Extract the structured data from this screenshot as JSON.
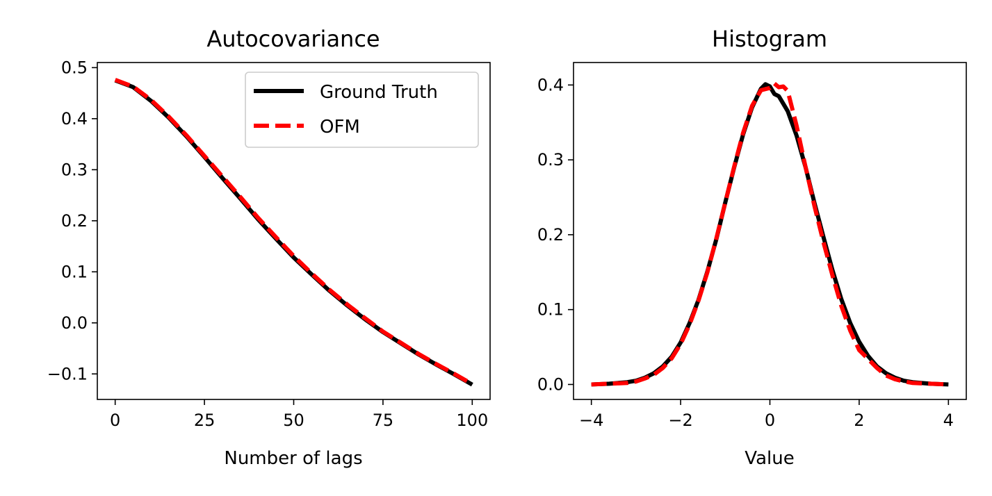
{
  "chart_data": [
    {
      "type": "line",
      "title": "Autocovariance",
      "xlabel": "Number of lags",
      "ylabel": "",
      "xlim": [
        -5,
        105
      ],
      "ylim": [
        -0.15,
        0.51
      ],
      "xticks": [
        0,
        25,
        50,
        75,
        100
      ],
      "xtick_labels": [
        "0",
        "25",
        "50",
        "75",
        "100"
      ],
      "yticks": [
        -0.1,
        0.0,
        0.1,
        0.2,
        0.3,
        0.4,
        0.5
      ],
      "ytick_labels": [
        "−0.1",
        "0.0",
        "0.1",
        "0.2",
        "0.3",
        "0.4",
        "0.5"
      ],
      "legend": {
        "position": "upper right",
        "entries": [
          "Ground Truth",
          "OFM"
        ]
      },
      "series": [
        {
          "name": "Ground Truth",
          "color": "#000000",
          "style": "solid",
          "x": [
            0,
            5,
            10,
            15,
            20,
            25,
            30,
            35,
            40,
            45,
            50,
            55,
            60,
            65,
            70,
            75,
            80,
            85,
            90,
            95,
            100
          ],
          "y": [
            0.475,
            0.462,
            0.435,
            0.402,
            0.365,
            0.325,
            0.284,
            0.244,
            0.203,
            0.165,
            0.128,
            0.095,
            0.063,
            0.034,
            0.007,
            -0.018,
            -0.04,
            -0.062,
            -0.082,
            -0.101,
            -0.121
          ]
        },
        {
          "name": "OFM",
          "color": "#ff0000",
          "style": "dashed",
          "x": [
            0,
            5,
            10,
            15,
            20,
            25,
            30,
            35,
            40,
            45,
            50,
            55,
            60,
            65,
            70,
            75,
            80,
            85,
            90,
            95,
            100
          ],
          "y": [
            0.476,
            0.463,
            0.437,
            0.404,
            0.367,
            0.327,
            0.287,
            0.247,
            0.206,
            0.168,
            0.131,
            0.097,
            0.065,
            0.036,
            0.009,
            -0.017,
            -0.039,
            -0.061,
            -0.081,
            -0.1,
            -0.12
          ]
        }
      ]
    },
    {
      "type": "line",
      "title": "Histogram",
      "xlabel": "Value",
      "ylabel": "",
      "xlim": [
        -4.4,
        4.4
      ],
      "ylim": [
        -0.02,
        0.43
      ],
      "xticks": [
        -4,
        -2,
        0,
        2,
        4
      ],
      "xtick_labels": [
        "−4",
        "−2",
        "0",
        "2",
        "4"
      ],
      "yticks": [
        0.0,
        0.1,
        0.2,
        0.3,
        0.4
      ],
      "ytick_labels": [
        "0.0",
        "0.1",
        "0.2",
        "0.3",
        "0.4"
      ],
      "series": [
        {
          "name": "Ground Truth",
          "color": "#000000",
          "style": "solid",
          "x": [
            -4.0,
            -3.6,
            -3.2,
            -3.0,
            -2.8,
            -2.6,
            -2.4,
            -2.2,
            -2.0,
            -1.8,
            -1.6,
            -1.4,
            -1.2,
            -1.0,
            -0.8,
            -0.6,
            -0.4,
            -0.2,
            -0.1,
            0.0,
            0.1,
            0.2,
            0.4,
            0.6,
            0.8,
            1.0,
            1.2,
            1.4,
            1.6,
            1.8,
            2.0,
            2.2,
            2.4,
            2.6,
            2.8,
            3.0,
            3.2,
            3.6,
            4.0
          ],
          "y": [
            0.0,
            0.001,
            0.003,
            0.005,
            0.009,
            0.015,
            0.024,
            0.037,
            0.056,
            0.082,
            0.113,
            0.151,
            0.194,
            0.243,
            0.29,
            0.334,
            0.37,
            0.395,
            0.401,
            0.398,
            0.388,
            0.385,
            0.365,
            0.332,
            0.29,
            0.242,
            0.197,
            0.153,
            0.114,
            0.082,
            0.057,
            0.038,
            0.024,
            0.015,
            0.009,
            0.005,
            0.003,
            0.001,
            0.0
          ]
        },
        {
          "name": "OFM",
          "color": "#ff0000",
          "style": "dashed",
          "x": [
            -4.0,
            -3.6,
            -3.2,
            -3.0,
            -2.8,
            -2.6,
            -2.4,
            -2.2,
            -2.0,
            -1.8,
            -1.6,
            -1.4,
            -1.2,
            -1.0,
            -0.8,
            -0.6,
            -0.4,
            -0.2,
            0.0,
            0.1,
            0.2,
            0.3,
            0.4,
            0.6,
            0.8,
            1.0,
            1.2,
            1.4,
            1.6,
            1.8,
            2.0,
            2.2,
            2.4,
            2.6,
            2.8,
            3.0,
            3.2,
            3.6,
            4.0
          ],
          "y": [
            0.0,
            0.001,
            0.002,
            0.004,
            0.008,
            0.013,
            0.022,
            0.035,
            0.054,
            0.08,
            0.112,
            0.15,
            0.195,
            0.243,
            0.291,
            0.336,
            0.372,
            0.393,
            0.396,
            0.402,
            0.397,
            0.398,
            0.392,
            0.345,
            0.29,
            0.238,
            0.19,
            0.146,
            0.105,
            0.072,
            0.046,
            0.034,
            0.022,
            0.012,
            0.007,
            0.004,
            0.002,
            0.001,
            0.0
          ]
        }
      ]
    }
  ]
}
